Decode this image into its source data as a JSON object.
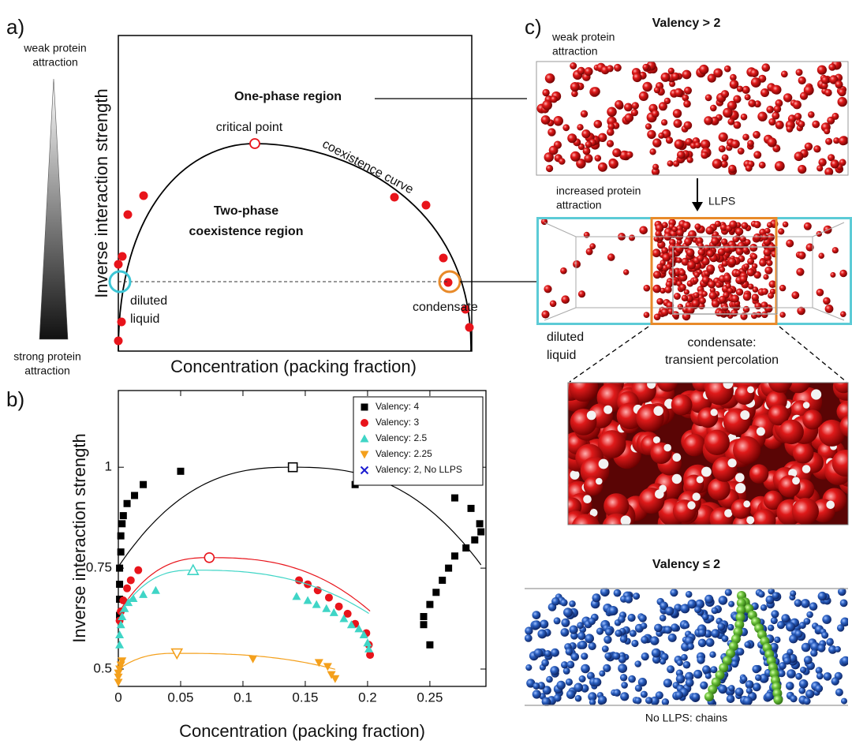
{
  "panel_a": {
    "label": "a)",
    "top_label": [
      "weak protein",
      "attraction"
    ],
    "bottom_label": [
      "strong protein",
      "attraction"
    ],
    "y_label": "Inverse interaction strength",
    "x_label": "Concentration (packing fraction)",
    "one_phase": "One-phase region",
    "critical_point": "critical point",
    "curve": "coexistence curve",
    "two_phase": [
      "Two-phase",
      "coexistence region"
    ],
    "diluted": [
      "diluted",
      "liquid"
    ],
    "condensate": "condensate"
  },
  "chart_data": {
    "type": "scatter",
    "label": "b)",
    "x_label": "Concentration (packing fraction)",
    "y_label": "Inverse interaction strength",
    "xlim": [
      0,
      0.295
    ],
    "ylim": [
      0.457,
      1.19
    ],
    "xticks": [
      0,
      0.05,
      0.1,
      0.15,
      0.2,
      0.25
    ],
    "yticks": [
      0.5,
      0.75,
      1
    ],
    "legend": "upper right",
    "series": [
      {
        "name": "Valency: 4",
        "color": "#000000",
        "marker": "square",
        "x": [
          0.001,
          0.001,
          0.001,
          0.001,
          0.002,
          0.002,
          0.003,
          0.004,
          0.007,
          0.013,
          0.02,
          0.05,
          0.19,
          0.27,
          0.283,
          0.29,
          0.291,
          0.286,
          0.279,
          0.27,
          0.265,
          0.26,
          0.255,
          0.25,
          0.245,
          0.245,
          0.25
        ],
        "values": [
          0.633,
          0.673,
          0.71,
          0.75,
          0.79,
          0.83,
          0.86,
          0.88,
          0.91,
          0.93,
          0.957,
          0.99,
          0.957,
          0.924,
          0.898,
          0.86,
          0.84,
          0.82,
          0.8,
          0.78,
          0.75,
          0.72,
          0.69,
          0.66,
          0.63,
          0.61,
          0.56
        ],
        "critical": {
          "x": 0.14,
          "y": 1
        }
      },
      {
        "name": "Valency: 3",
        "color": "#e8141b",
        "marker": "circle",
        "x": [
          0.001,
          0.002,
          0.004,
          0.007,
          0.01,
          0.016,
          0.145,
          0.152,
          0.16,
          0.169,
          0.177,
          0.184,
          0.19,
          0.199,
          0.201,
          0.202
        ],
        "values": [
          0.62,
          0.643,
          0.67,
          0.7,
          0.72,
          0.745,
          0.72,
          0.71,
          0.695,
          0.677,
          0.655,
          0.637,
          0.612,
          0.589,
          0.56,
          0.535
        ],
        "critical": {
          "x": 0.073,
          "y": 0.776
        }
      },
      {
        "name": "Valency: 2.5",
        "color": "#3fd5c6",
        "marker": "triangle",
        "x": [
          0.001,
          0.001,
          0.002,
          0.003,
          0.005,
          0.008,
          0.012,
          0.02,
          0.03,
          0.143,
          0.152,
          0.159,
          0.167,
          0.173,
          0.181,
          0.187,
          0.193,
          0.197,
          0.2,
          0.201
        ],
        "values": [
          0.56,
          0.585,
          0.61,
          0.63,
          0.65,
          0.665,
          0.675,
          0.685,
          0.695,
          0.68,
          0.67,
          0.66,
          0.65,
          0.64,
          0.625,
          0.61,
          0.6,
          0.585,
          0.565,
          0.55
        ],
        "critical": {
          "x": 0.06,
          "y": 0.745
        }
      },
      {
        "name": "Valency: 2.25",
        "color": "#f4a01c",
        "marker": "triangle-down",
        "x": [
          0,
          0,
          0,
          0.001,
          0.002,
          0.003,
          0.108,
          0.161,
          0.168,
          0.171,
          0.174
        ],
        "values": [
          0.467,
          0.48,
          0.49,
          0.5,
          0.51,
          0.52,
          0.525,
          0.516,
          0.506,
          0.486,
          0.476
        ],
        "critical": {
          "x": 0.047,
          "y": 0.539
        }
      },
      {
        "name": "Valency: 2, No LLPS",
        "color": "#1a1ad0",
        "marker": "x",
        "x": [],
        "values": []
      }
    ]
  },
  "panel_c": {
    "label": "c)",
    "valency_high": "Valency >  2",
    "weak": [
      "weak protein",
      "attraction"
    ],
    "llps": "LLPS",
    "increased": [
      "increased protein",
      "attraction"
    ],
    "diluted": [
      "diluted",
      "liquid"
    ],
    "condensate": [
      "condensate:",
      "transient percolation"
    ],
    "valency_low": "Valency ≤  2",
    "no_llps": "No LLPS: chains"
  }
}
